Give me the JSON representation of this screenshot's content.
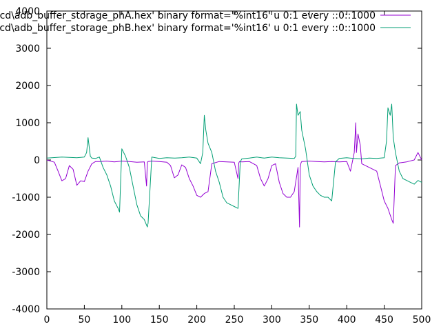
{
  "chart_data": {
    "type": "line",
    "xlim": [
      0,
      500
    ],
    "ylim": [
      -4000,
      4000
    ],
    "xticks": [
      0,
      50,
      100,
      150,
      200,
      250,
      300,
      350,
      400,
      450,
      500
    ],
    "yticks": [
      -4000,
      -3000,
      -2000,
      -1000,
      0,
      1000,
      2000,
      3000,
      4000
    ],
    "xtick_labels": [
      "0",
      "50",
      "100",
      "150",
      "200",
      "250",
      "300",
      "350",
      "400",
      "450",
      "500"
    ],
    "ytick_labels": [
      "-4000",
      "-3000",
      "-2000",
      "-1000",
      "0",
      "1000",
      "2000",
      "3000",
      "4000"
    ],
    "grid": false,
    "legend_position": "top-right",
    "series": [
      {
        "name": "cd\\adb_buffer_storage_phA.hex' binary format='%int16' u 0:1 every ::0::1000",
        "color": "#9400d3",
        "x": [
          0,
          10,
          15,
          20,
          25,
          30,
          35,
          40,
          45,
          50,
          55,
          60,
          65,
          70,
          80,
          90,
          100,
          110,
          120,
          130,
          133,
          134,
          135,
          140,
          150,
          160,
          165,
          170,
          175,
          180,
          185,
          190,
          195,
          200,
          205,
          210,
          215,
          220,
          230,
          240,
          250,
          255,
          256,
          257,
          260,
          270,
          280,
          285,
          290,
          295,
          300,
          305,
          310,
          315,
          320,
          325,
          330,
          335,
          337,
          338,
          339,
          340,
          350,
          360,
          370,
          380,
          390,
          400,
          405,
          410,
          412,
          413,
          415,
          418,
          420,
          430,
          440,
          445,
          450,
          455,
          460,
          462,
          465,
          470,
          480,
          490,
          495,
          500
        ],
        "y": [
          0,
          -60,
          -300,
          -560,
          -500,
          -150,
          -250,
          -680,
          -560,
          -580,
          -300,
          -100,
          -40,
          -40,
          -30,
          -50,
          -30,
          -40,
          -60,
          -50,
          -700,
          -60,
          -40,
          -30,
          -40,
          -60,
          -150,
          -480,
          -400,
          -130,
          -200,
          -500,
          -700,
          -950,
          -1000,
          -900,
          -850,
          -100,
          -40,
          -50,
          -60,
          -500,
          -80,
          -40,
          -50,
          -40,
          -150,
          -500,
          -700,
          -500,
          -150,
          -100,
          -600,
          -900,
          -1000,
          -1000,
          -850,
          -200,
          -1800,
          -200,
          -80,
          -40,
          -30,
          -40,
          -50,
          -40,
          -50,
          -40,
          -300,
          200,
          1000,
          200,
          700,
          400,
          -100,
          -200,
          -300,
          -700,
          -1100,
          -1300,
          -1600,
          -1700,
          -150,
          -80,
          -50,
          0,
          200,
          0
        ]
      },
      {
        "name": "cd\\adb_buffer_storage_phB.hex' binary format='%int16' u 0:1 every ::0::1000",
        "color": "#009e73",
        "x": [
          0,
          20,
          40,
          50,
          53,
          55,
          58,
          60,
          65,
          70,
          75,
          80,
          85,
          90,
          95,
          97,
          100,
          105,
          110,
          115,
          120,
          125,
          130,
          132,
          134,
          135,
          140,
          150,
          160,
          170,
          180,
          190,
          200,
          205,
          208,
          210,
          212,
          215,
          220,
          225,
          230,
          235,
          240,
          245,
          250,
          255,
          258,
          260,
          270,
          280,
          290,
          300,
          310,
          320,
          330,
          332,
          333,
          335,
          338,
          340,
          345,
          350,
          355,
          360,
          365,
          370,
          375,
          380,
          385,
          390,
          400,
          410,
          420,
          430,
          440,
          450,
          453,
          455,
          458,
          460,
          462,
          465,
          470,
          475,
          480,
          485,
          490,
          495,
          500
        ],
        "y": [
          50,
          80,
          60,
          80,
          200,
          600,
          100,
          50,
          40,
          80,
          -200,
          -400,
          -700,
          -1100,
          -1300,
          -1400,
          300,
          100,
          -200,
          -700,
          -1200,
          -1500,
          -1600,
          -1700,
          -1800,
          -1700,
          80,
          40,
          60,
          50,
          60,
          80,
          50,
          -100,
          200,
          1200,
          800,
          450,
          200,
          -300,
          -600,
          -1000,
          -1150,
          -1200,
          -1250,
          -1300,
          -50,
          30,
          50,
          80,
          50,
          80,
          60,
          50,
          40,
          100,
          1500,
          1200,
          1300,
          800,
          300,
          -400,
          -700,
          -850,
          -950,
          -1000,
          -1000,
          -1100,
          -50,
          40,
          60,
          40,
          30,
          50,
          40,
          60,
          500,
          1400,
          1200,
          1500,
          600,
          200,
          -300,
          -500,
          -550,
          -600,
          -650,
          -550,
          -600
        ]
      }
    ]
  }
}
